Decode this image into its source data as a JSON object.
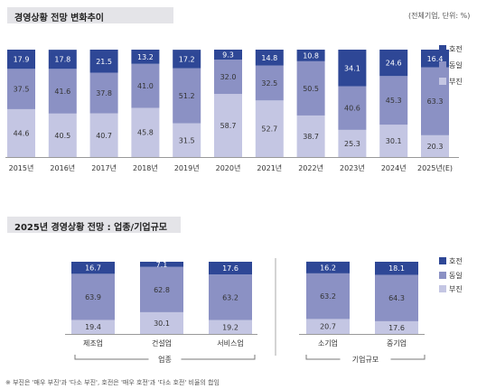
{
  "chart_data": [
    {
      "type": "bar",
      "stacked": true,
      "title": "경영상황 전망 변화추이",
      "unit_note": "(전체기업, 단위: %)",
      "categories": [
        "2015년",
        "2016년",
        "2017년",
        "2018년",
        "2019년",
        "2020년",
        "2021년",
        "2022년",
        "2023년",
        "2024년",
        "2025년(E)"
      ],
      "series": [
        {
          "name": "부진",
          "color": "#c4c6e3",
          "values": [
            44.6,
            40.5,
            40.7,
            45.8,
            31.5,
            58.7,
            52.7,
            38.7,
            25.3,
            30.1,
            20.3
          ]
        },
        {
          "name": "동일",
          "color": "#8b91c4",
          "values": [
            37.5,
            41.6,
            37.8,
            41.0,
            51.2,
            32.0,
            32.5,
            50.5,
            40.6,
            45.3,
            63.3
          ]
        },
        {
          "name": "호전",
          "color": "#2e4796",
          "values": [
            17.9,
            17.8,
            21.5,
            13.2,
            17.2,
            9.3,
            14.8,
            10.8,
            34.1,
            24.6,
            16.4
          ]
        }
      ],
      "ylim": [
        0,
        100
      ],
      "legend": "right"
    },
    {
      "type": "bar",
      "stacked": true,
      "title": "2025년 경영상황 전망 : 업종/기업규모",
      "categories": [
        "제조업",
        "건설업",
        "서비스업",
        "소기업",
        "중기업"
      ],
      "groups": [
        {
          "label": "업종",
          "members": [
            "제조업",
            "건설업",
            "서비스업"
          ]
        },
        {
          "label": "기업규모",
          "members": [
            "소기업",
            "중기업"
          ]
        }
      ],
      "series": [
        {
          "name": "부진",
          "color": "#c4c6e3",
          "values": [
            19.4,
            30.1,
            19.2,
            20.7,
            17.6
          ]
        },
        {
          "name": "동일",
          "color": "#8b91c4",
          "values": [
            63.9,
            62.8,
            63.2,
            63.2,
            64.3
          ]
        },
        {
          "name": "호전",
          "color": "#2e4796",
          "values": [
            16.7,
            7.1,
            17.6,
            16.2,
            18.1
          ]
        }
      ],
      "ylim": [
        0,
        100
      ],
      "legend": "right"
    }
  ],
  "footnote": "※ 부진은 '매우 부진'과 '다소 부진', 호전은 '매우 호전'과 '다소 호전' 비율의 합임"
}
